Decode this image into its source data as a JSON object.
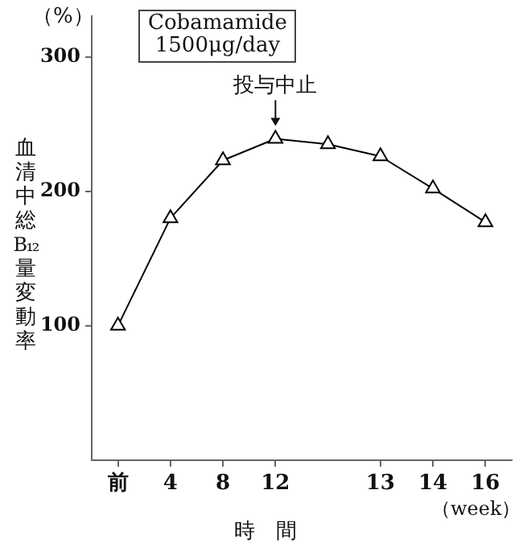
{
  "chart_data": {
    "type": "line",
    "ylabel": "血清中総B₁₂量変動率",
    "xlabel": "時　間",
    "annotations": [
      "Cobamamide\n1500μg/day",
      "（%）",
      "（week）",
      {
        "text": "投与中止",
        "x": "12",
        "y": 239
      }
    ],
    "categories": [
      "前",
      "4",
      "8",
      "12",
      null,
      "13",
      "14",
      "16"
    ],
    "series": [
      {
        "color": "#000000",
        "values": [
          100,
          180,
          223,
          239,
          235,
          226,
          202,
          177
        ]
      }
    ],
    "ylim": [
      0,
      330
    ],
    "yticks": [
      100,
      200,
      300
    ],
    "grid": false,
    "legend": false,
    "marker": "triangle",
    "line_style": "solid"
  }
}
